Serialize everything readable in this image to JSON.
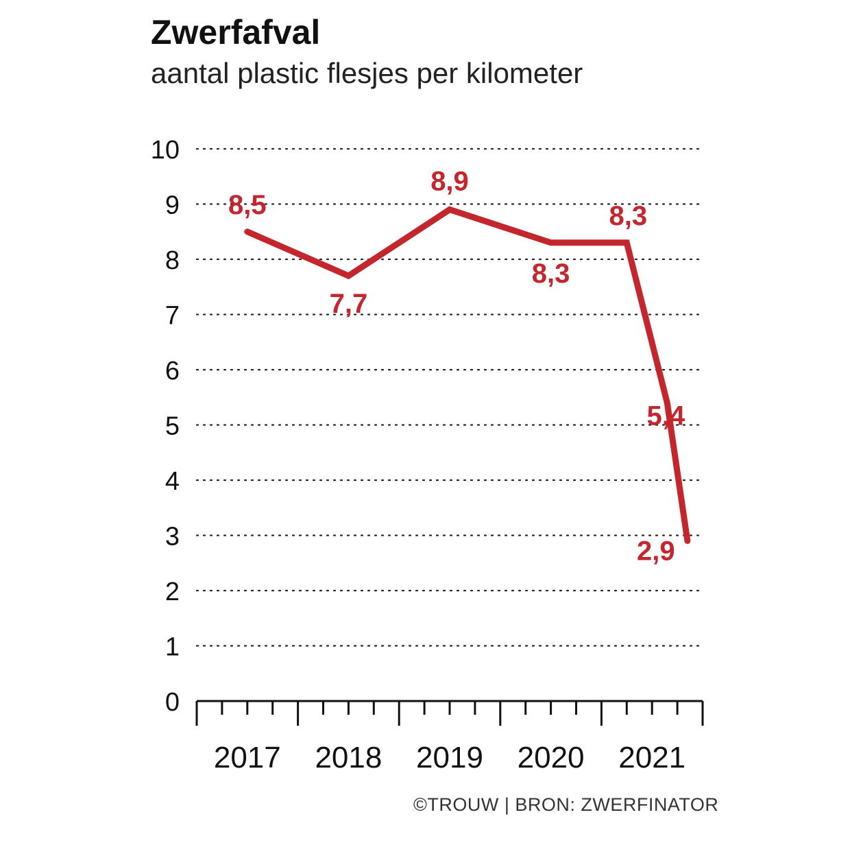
{
  "chart_data": {
    "type": "line",
    "title": "Zwerfafval",
    "subtitle": "aantal plastic flesjes per kilometer",
    "ylim": [
      0,
      10
    ],
    "yticks": [
      "0",
      "1",
      "2",
      "3",
      "4",
      "5",
      "6",
      "7",
      "8",
      "9",
      "10"
    ],
    "xlim": [
      2016.5,
      2021.5
    ],
    "xticks": [
      {
        "label": "2017",
        "value": 2017
      },
      {
        "label": "2018",
        "value": 2018
      },
      {
        "label": "2019",
        "value": 2019
      },
      {
        "label": "2020",
        "value": 2020
      },
      {
        "label": "2021",
        "value": 2021
      }
    ],
    "series": [
      {
        "color": "#c4262e",
        "points": [
          {
            "x": 2017.0,
            "y": 8.5,
            "label": "8,5"
          },
          {
            "x": 2018.0,
            "y": 7.7,
            "label": "7,7"
          },
          {
            "x": 2019.0,
            "y": 8.9,
            "label": "8,9"
          },
          {
            "x": 2020.0,
            "y": 8.3,
            "label": "8,3"
          },
          {
            "x": 2020.75,
            "y": 8.3,
            "label": "8,3"
          },
          {
            "x": 2021.15,
            "y": 5.4,
            "label": "5,4"
          },
          {
            "x": 2021.35,
            "y": 2.9,
            "label": "2,9"
          }
        ]
      }
    ],
    "grid": true,
    "grid_style": "dotted"
  },
  "credit": "©TROUW | BRON: ZWERFINATOR"
}
